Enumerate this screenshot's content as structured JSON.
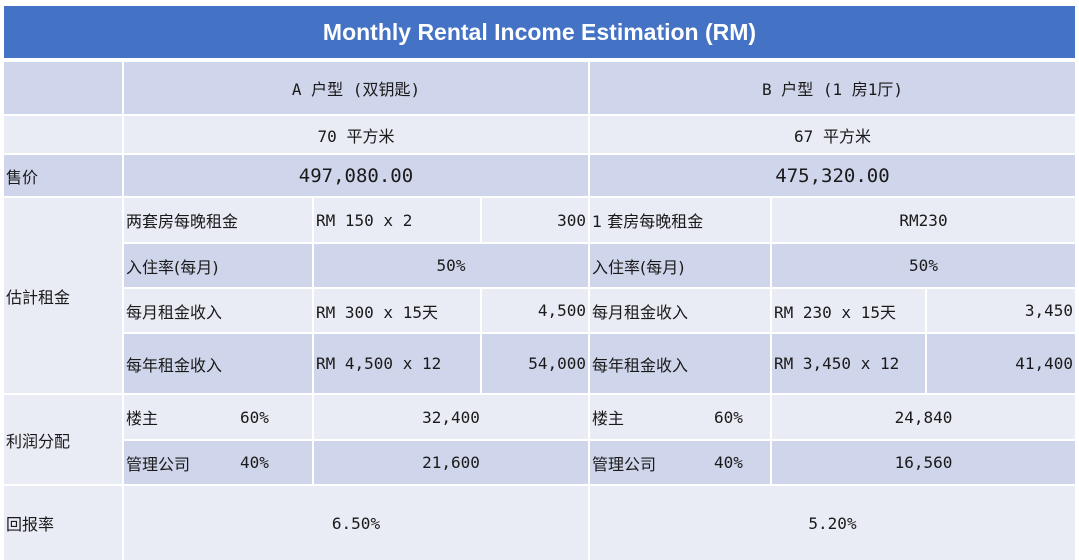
{
  "title": "Monthly Rental Income Estimation (RM)",
  "header": {
    "type_a": "A 户型 (双钥匙)",
    "type_b": "B 户型 (1 房1厅)",
    "area_a": "70 平方米",
    "area_b": "67 平方米"
  },
  "price": {
    "label": "售价",
    "a": "497,080.00",
    "b": "475,320.00"
  },
  "rent": {
    "label": "估計租金",
    "a": {
      "nightly_label": "两套房每晚租金",
      "nightly_formula": "RM 150 x 2",
      "nightly_value": "300",
      "occupancy_label": "入住率(每月)",
      "occupancy_value": "50%",
      "monthly_label": "每月租金收入",
      "monthly_formula": "RM 300 x 15天",
      "monthly_value": "4,500",
      "yearly_label": "每年租金收入",
      "yearly_formula": "RM 4,500 x 12",
      "yearly_value": "54,000"
    },
    "b": {
      "nightly_label": "1 套房每晚租金",
      "nightly_value": "RM230",
      "occupancy_label": "入住率(每月)",
      "occupancy_value": "50%",
      "monthly_label": "每月租金收入",
      "monthly_formula": "RM 230 x 15天",
      "monthly_value": "3,450",
      "yearly_label": "每年租金收入",
      "yearly_formula": "RM 3,450 x 12",
      "yearly_value": "41,400"
    }
  },
  "profit": {
    "label": "利润分配",
    "a": {
      "owner_label": "楼主",
      "owner_pct": "60%",
      "owner_value": "32,400",
      "mgmt_label": "管理公司",
      "mgmt_pct": "40%",
      "mgmt_value": "21,600"
    },
    "b": {
      "owner_label": "楼主",
      "owner_pct": "60%",
      "owner_value": "24,840",
      "mgmt_label": "管理公司",
      "mgmt_pct": "40%",
      "mgmt_value": "16,560"
    }
  },
  "return": {
    "label": "回报率",
    "a": "6.50%",
    "b": "5.20%"
  },
  "colors": {
    "title_bg": "#4472c4",
    "row_dark": "#cfd5ea",
    "row_light": "#e9ebf5"
  }
}
